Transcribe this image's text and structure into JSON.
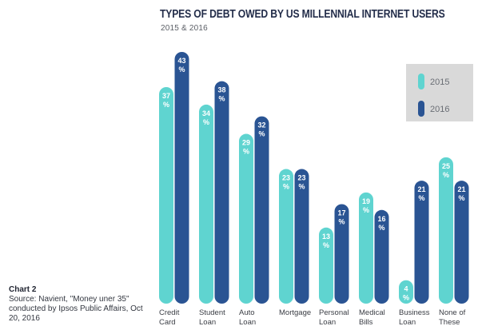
{
  "chart_data": {
    "type": "bar",
    "title": "TYPES OF DEBT OWED BY US MILLENNIAL INTERNET USERS",
    "subtitle": "2015 & 2016",
    "categories": [
      [
        "Credit",
        "Card"
      ],
      [
        "Student",
        "Loan"
      ],
      [
        "Auto",
        "Loan"
      ],
      [
        "Mortgage"
      ],
      [
        "Personal",
        "Loan"
      ],
      [
        "Medical",
        "Bills"
      ],
      [
        "Business",
        "Loan"
      ],
      [
        "None of",
        "These"
      ]
    ],
    "series": [
      {
        "name": "2015",
        "color": "#5fd4d0",
        "values": [
          37,
          34,
          29,
          23,
          13,
          19,
          4,
          25
        ]
      },
      {
        "name": "2016",
        "color": "#2a5493",
        "values": [
          43,
          38,
          32,
          23,
          17,
          16,
          21,
          21
        ]
      }
    ],
    "value_suffix": "%",
    "ylim": [
      0,
      43
    ],
    "legend_position": "top-right",
    "legend_background": "#d9d9d9"
  },
  "source": {
    "label": "Chart 2",
    "text": "Source: Navient, \"Money uner 35\" conducted by Ipsos Public Affairs, Oct 20, 2016"
  }
}
